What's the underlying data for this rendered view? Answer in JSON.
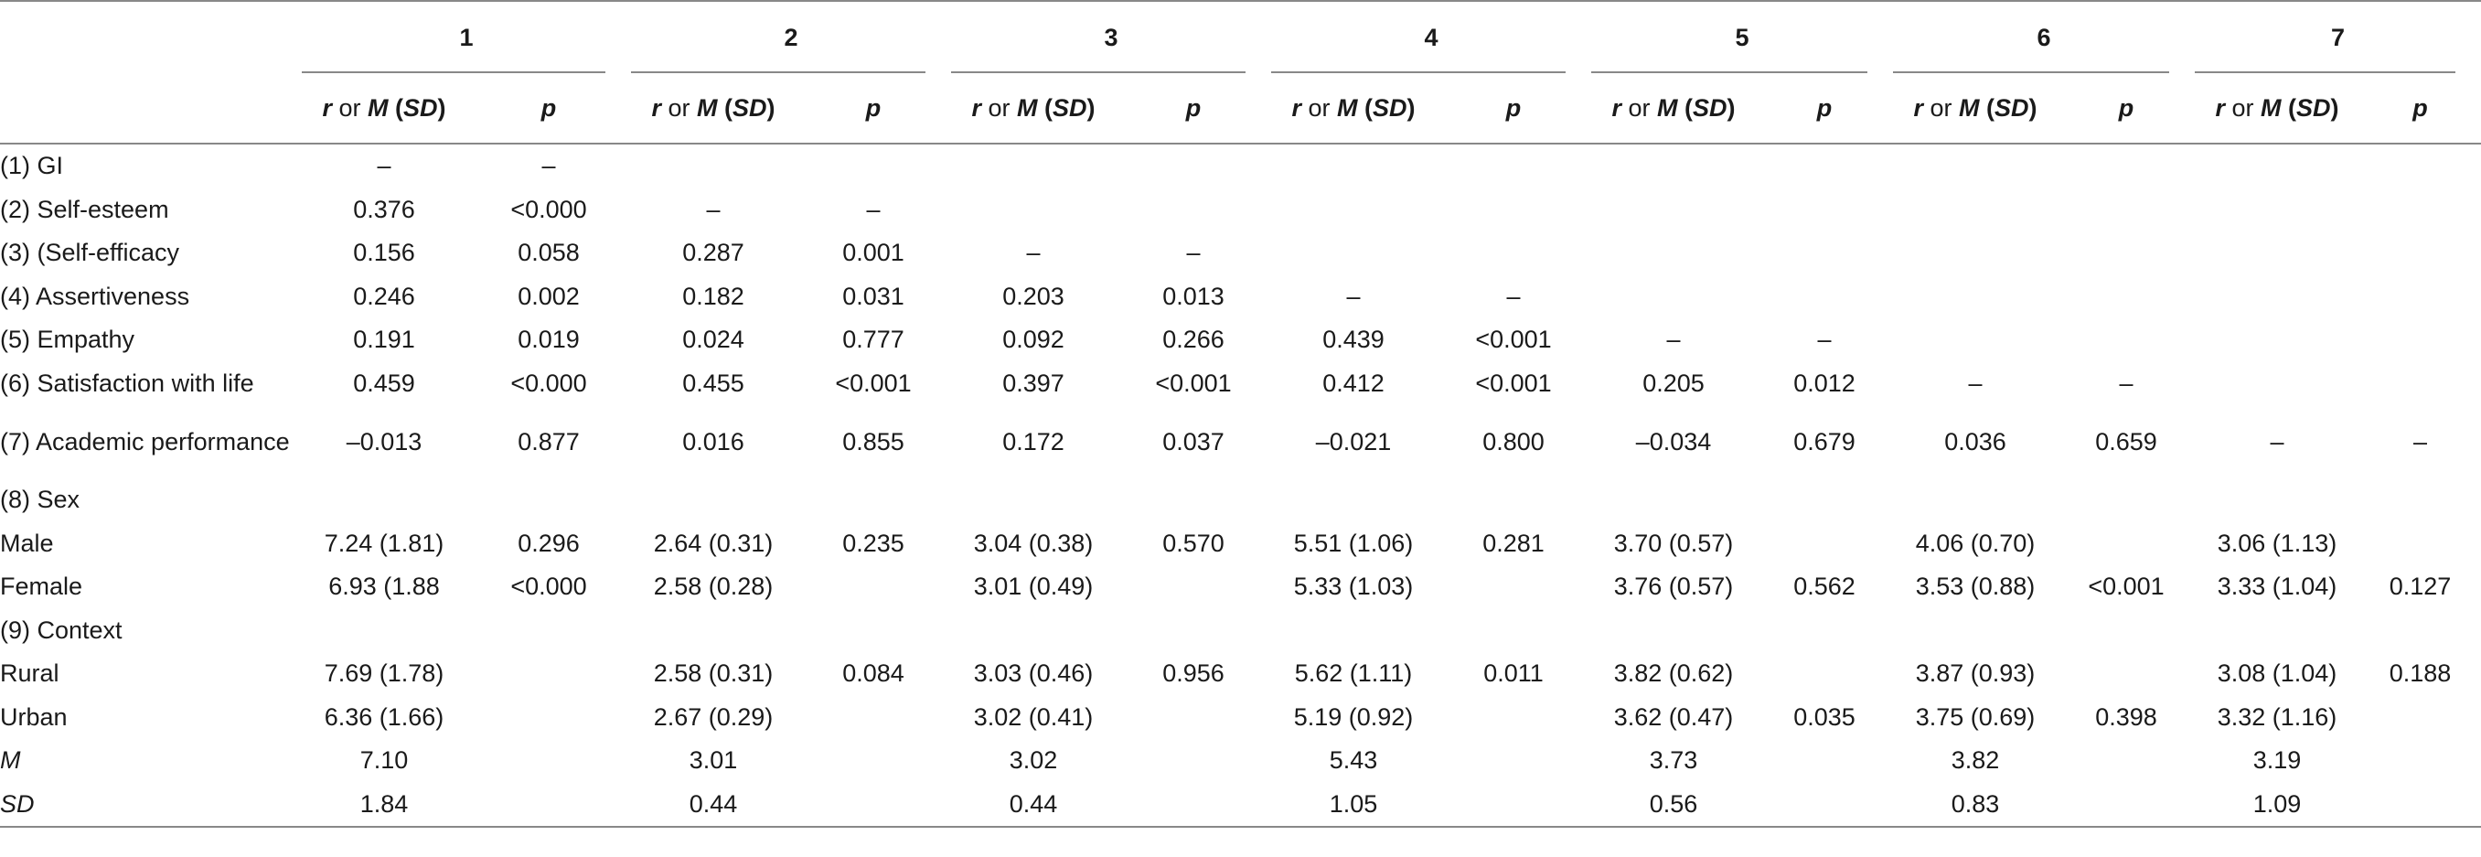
{
  "header": {
    "groups": [
      "1",
      "2",
      "3",
      "4",
      "5",
      "6",
      "7"
    ],
    "sub_r": "r",
    "sub_or": "or",
    "sub_M": "M",
    "sub_SD": "SD",
    "sub_p": "p"
  },
  "rows": [
    {
      "label": "(1) GI",
      "cells": [
        "–",
        "–",
        "",
        "",
        "",
        "",
        "",
        "",
        "",
        "",
        "",
        "",
        "",
        ""
      ]
    },
    {
      "label": "(2) Self-esteem",
      "cells": [
        "0.376",
        "<0.000",
        "–",
        "–",
        "",
        "",
        "",
        "",
        "",
        "",
        "",
        "",
        "",
        ""
      ]
    },
    {
      "label": "(3) (Self-efficacy",
      "cells": [
        "0.156",
        "0.058",
        "0.287",
        "0.001",
        "–",
        "–",
        "",
        "",
        "",
        "",
        "",
        "",
        "",
        ""
      ]
    },
    {
      "label": "(4) Assertiveness",
      "cells": [
        "0.246",
        "0.002",
        "0.182",
        "0.031",
        "0.203",
        "0.013",
        "–",
        "–",
        "",
        "",
        "",
        "",
        "",
        ""
      ]
    },
    {
      "label": "(5) Empathy",
      "cells": [
        "0.191",
        "0.019",
        "0.024",
        "0.777",
        "0.092",
        "0.266",
        "0.439",
        "<0.001",
        "–",
        "–",
        "",
        "",
        "",
        ""
      ]
    },
    {
      "label": "(6) Satisfaction with life",
      "cells": [
        "0.459",
        "<0.000",
        "0.455",
        "<0.001",
        "0.397",
        "<0.001",
        "0.412",
        "<0.001",
        "0.205",
        "0.012",
        "–",
        "–",
        "",
        ""
      ]
    },
    {
      "label": "(7) Academic performance",
      "tall": true,
      "cells": [
        "–0.013",
        "0.877",
        "0.016",
        "0.855",
        "0.172",
        "0.037",
        "–0.021",
        "0.800",
        "–0.034",
        "0.679",
        "0.036",
        "0.659",
        "–",
        "–"
      ]
    },
    {
      "label": "(8) Sex",
      "cells": [
        "",
        "",
        "",
        "",
        "",
        "",
        "",
        "",
        "",
        "",
        "",
        "",
        "",
        ""
      ]
    },
    {
      "label": "Male",
      "cells": [
        "7.24 (1.81)",
        "0.296",
        "2.64 (0.31)",
        "0.235",
        "3.04 (0.38)",
        "0.570",
        "5.51 (1.06)",
        "0.281",
        "3.70 (0.57)",
        "",
        "4.06 (0.70)",
        "",
        "3.06 (1.13)",
        ""
      ]
    },
    {
      "label": "Female",
      "cells": [
        "6.93 (1.88",
        "<0.000",
        "2.58 (0.28)",
        "",
        "3.01 (0.49)",
        "",
        "5.33 (1.03)",
        "",
        "3.76 (0.57)",
        "0.562",
        "3.53 (0.88)",
        "<0.001",
        "3.33 (1.04)",
        "0.127"
      ]
    },
    {
      "label": "(9) Context",
      "cells": [
        "",
        "",
        "",
        "",
        "",
        "",
        "",
        "",
        "",
        "",
        "",
        "",
        "",
        ""
      ]
    },
    {
      "label": "Rural",
      "cells": [
        "7.69 (1.78)",
        "",
        "2.58 (0.31)",
        "0.084",
        "3.03 (0.46)",
        "0.956",
        "5.62 (1.11)",
        "0.011",
        "3.82 (0.62)",
        "",
        "3.87 (0.93)",
        "",
        "3.08 (1.04)",
        "0.188"
      ]
    },
    {
      "label": "Urban",
      "cells": [
        "6.36 (1.66)",
        "",
        "2.67 (0.29)",
        "",
        "3.02 (0.41)",
        "",
        "5.19 (0.92)",
        "",
        "3.62 (0.47)",
        "0.035",
        "3.75 (0.69)",
        "0.398",
        "3.32 (1.16)",
        ""
      ]
    },
    {
      "label": "M",
      "italic": true,
      "cells": [
        "7.10",
        "",
        "3.01",
        "",
        "3.02",
        "",
        "5.43",
        "",
        "3.73",
        "",
        "3.82",
        "",
        "3.19",
        ""
      ]
    },
    {
      "label": "SD",
      "italic": true,
      "cells": [
        "1.84",
        "",
        "0.44",
        "",
        "0.44",
        "",
        "1.05",
        "",
        "0.56",
        "",
        "0.83",
        "",
        "1.09",
        ""
      ]
    }
  ]
}
